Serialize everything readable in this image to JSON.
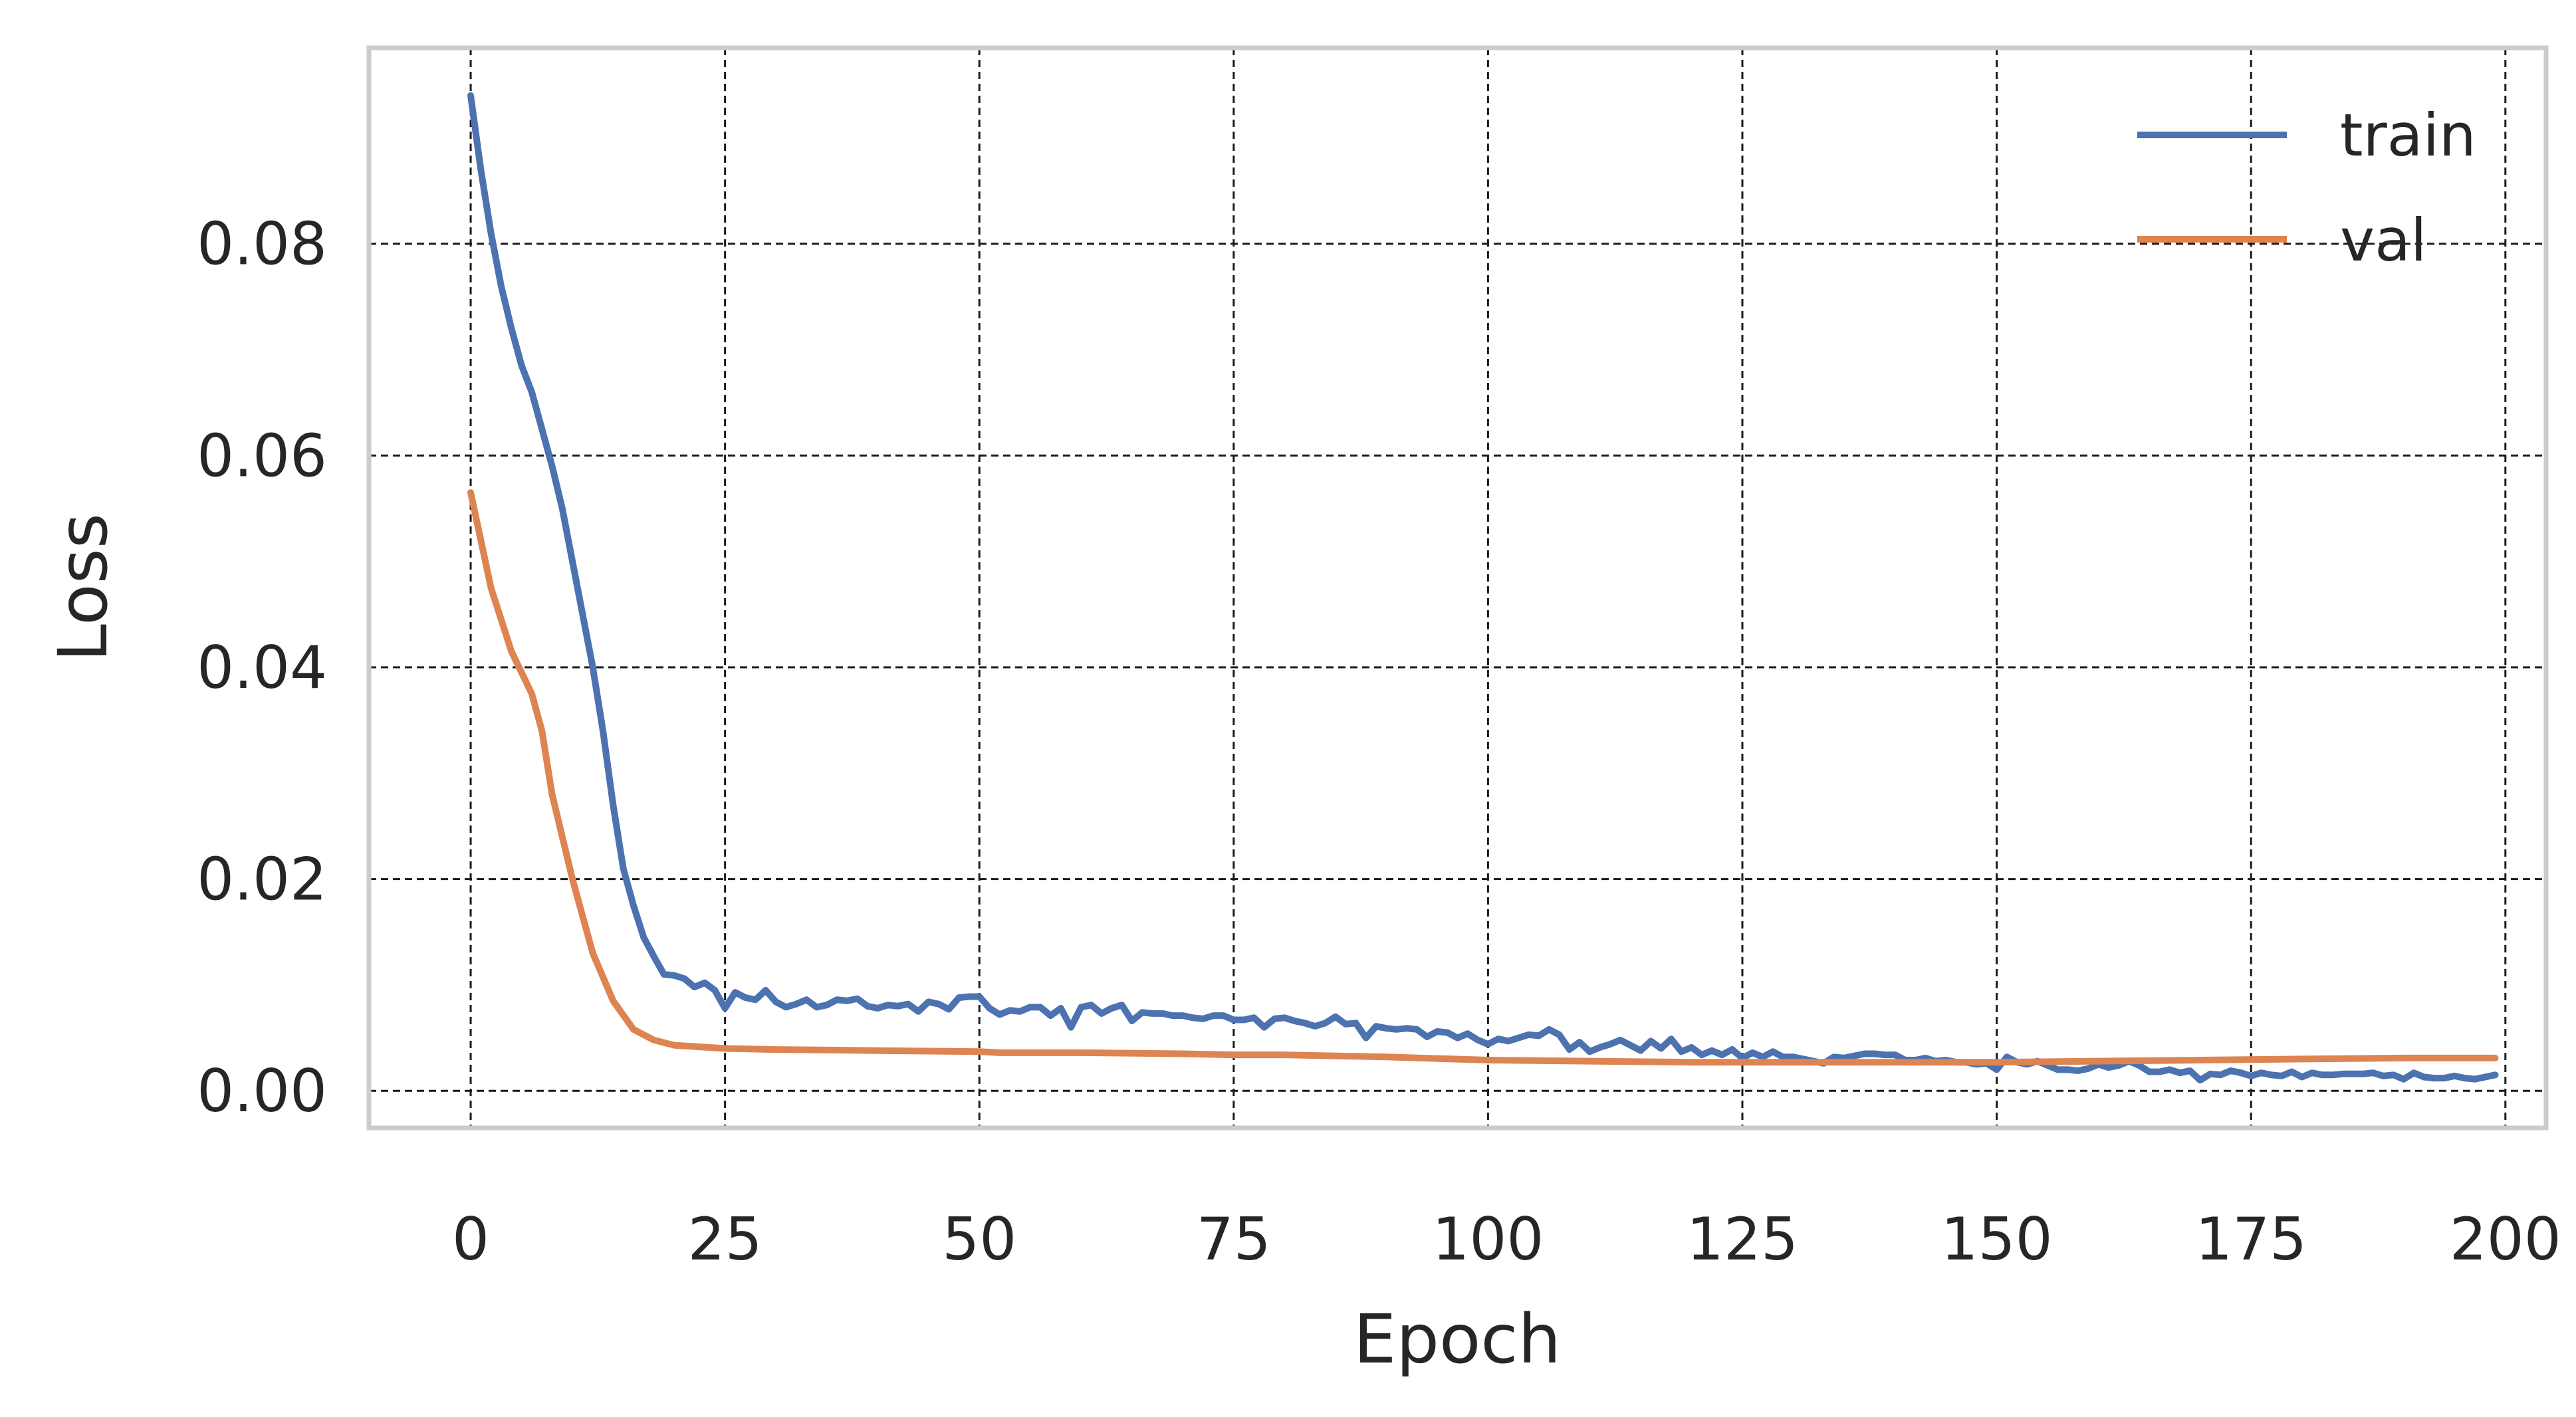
{
  "chart_data": {
    "type": "line",
    "title": "",
    "xlabel": "Epoch",
    "ylabel": "Loss",
    "xlim": [
      -10,
      204
    ],
    "ylim": [
      -0.0035,
      0.0985
    ],
    "x_ticks": [
      0,
      25,
      50,
      75,
      100,
      125,
      150,
      175,
      200
    ],
    "x_tick_labels": [
      "0",
      "25",
      "50",
      "75",
      "100",
      "125",
      "150",
      "175",
      "200"
    ],
    "y_ticks": [
      0.0,
      0.02,
      0.04,
      0.06,
      0.08
    ],
    "y_tick_labels": [
      "0.00",
      "0.02",
      "0.04",
      "0.06",
      "0.08"
    ],
    "grid": true,
    "legend_position": "top-right",
    "colors": {
      "train": "#4c72b0",
      "val": "#dd8452",
      "grid": "#1a1a1a",
      "frame": "#cccccc"
    },
    "series": [
      {
        "name": "train",
        "color": "#4c72b0",
        "points": [
          [
            0,
            0.094
          ],
          [
            1,
            0.087
          ],
          [
            2,
            0.081
          ],
          [
            3,
            0.076
          ],
          [
            4,
            0.072
          ],
          [
            5,
            0.0685
          ],
          [
            6,
            0.066
          ],
          [
            7,
            0.0625
          ],
          [
            8,
            0.059
          ],
          [
            9,
            0.055
          ],
          [
            10,
            0.05
          ],
          [
            11,
            0.045
          ],
          [
            12,
            0.04
          ],
          [
            13,
            0.034
          ],
          [
            14,
            0.027
          ],
          [
            15,
            0.021
          ],
          [
            16,
            0.0175
          ],
          [
            17,
            0.0145
          ],
          [
            18,
            0.0127
          ],
          [
            19,
            0.011
          ],
          [
            20,
            0.0109
          ],
          [
            21,
            0.0106
          ],
          [
            22,
            0.0098
          ],
          [
            23,
            0.0102
          ],
          [
            24,
            0.0095
          ],
          [
            25,
            0.0078
          ],
          [
            26,
            0.0093
          ],
          [
            27,
            0.0088
          ],
          [
            28,
            0.0086
          ],
          [
            29,
            0.0095
          ],
          [
            30,
            0.0084
          ],
          [
            31,
            0.0079
          ],
          [
            32,
            0.0082
          ],
          [
            33,
            0.0086
          ],
          [
            34,
            0.0079
          ],
          [
            35,
            0.0081
          ],
          [
            36,
            0.0086
          ],
          [
            37,
            0.0085
          ],
          [
            38,
            0.0087
          ],
          [
            39,
            0.008
          ],
          [
            40,
            0.0078
          ],
          [
            41,
            0.0081
          ],
          [
            42,
            0.008
          ],
          [
            43,
            0.0082
          ],
          [
            44,
            0.0075
          ],
          [
            45,
            0.0084
          ],
          [
            46,
            0.0082
          ],
          [
            47,
            0.0077
          ],
          [
            48,
            0.0088
          ],
          [
            49,
            0.0089
          ],
          [
            50,
            0.0089
          ],
          [
            51,
            0.0078
          ],
          [
            52,
            0.0072
          ],
          [
            53,
            0.0076
          ],
          [
            54,
            0.0075
          ],
          [
            55,
            0.0079
          ],
          [
            56,
            0.0079
          ],
          [
            57,
            0.0071
          ],
          [
            58,
            0.0078
          ],
          [
            59,
            0.006
          ],
          [
            60,
            0.0079
          ],
          [
            61,
            0.0081
          ],
          [
            62,
            0.0073
          ],
          [
            63,
            0.0078
          ],
          [
            64,
            0.0081
          ],
          [
            65,
            0.0066
          ],
          [
            66,
            0.0074
          ],
          [
            67,
            0.0073
          ],
          [
            68,
            0.0073
          ],
          [
            69,
            0.0071
          ],
          [
            70,
            0.0071
          ],
          [
            71,
            0.0069
          ],
          [
            72,
            0.0068
          ],
          [
            73,
            0.0071
          ],
          [
            74,
            0.0071
          ],
          [
            75,
            0.0067
          ],
          [
            76,
            0.0067
          ],
          [
            77,
            0.0069
          ],
          [
            78,
            0.006
          ],
          [
            79,
            0.0068
          ],
          [
            80,
            0.0069
          ],
          [
            81,
            0.0066
          ],
          [
            82,
            0.0064
          ],
          [
            83,
            0.0061
          ],
          [
            84,
            0.0064
          ],
          [
            85,
            0.007
          ],
          [
            86,
            0.0063
          ],
          [
            87,
            0.0064
          ],
          [
            88,
            0.005
          ],
          [
            89,
            0.0061
          ],
          [
            90,
            0.0059
          ],
          [
            91,
            0.0058
          ],
          [
            92,
            0.0059
          ],
          [
            93,
            0.0058
          ],
          [
            94,
            0.0051
          ],
          [
            95,
            0.0056
          ],
          [
            96,
            0.0055
          ],
          [
            97,
            0.005
          ],
          [
            98,
            0.0054
          ],
          [
            99,
            0.0048
          ],
          [
            100,
            0.0044
          ],
          [
            101,
            0.0049
          ],
          [
            102,
            0.0047
          ],
          [
            103,
            0.005
          ],
          [
            104,
            0.0053
          ],
          [
            105,
            0.0052
          ],
          [
            106,
            0.0058
          ],
          [
            107,
            0.0053
          ],
          [
            108,
            0.0039
          ],
          [
            109,
            0.0046
          ],
          [
            110,
            0.0037
          ],
          [
            111,
            0.0041
          ],
          [
            112,
            0.0044
          ],
          [
            113,
            0.0048
          ],
          [
            114,
            0.0043
          ],
          [
            115,
            0.0038
          ],
          [
            116,
            0.0047
          ],
          [
            117,
            0.004
          ],
          [
            118,
            0.0049
          ],
          [
            119,
            0.0037
          ],
          [
            120,
            0.0041
          ],
          [
            121,
            0.0034
          ],
          [
            122,
            0.0038
          ],
          [
            123,
            0.0034
          ],
          [
            124,
            0.0039
          ],
          [
            125,
            0.0031
          ],
          [
            126,
            0.0036
          ],
          [
            127,
            0.0032
          ],
          [
            128,
            0.0037
          ],
          [
            129,
            0.0032
          ],
          [
            130,
            0.0032
          ],
          [
            131,
            0.003
          ],
          [
            132,
            0.0028
          ],
          [
            133,
            0.0026
          ],
          [
            134,
            0.0032
          ],
          [
            135,
            0.0031
          ],
          [
            136,
            0.0033
          ],
          [
            137,
            0.0035
          ],
          [
            138,
            0.0035
          ],
          [
            139,
            0.0034
          ],
          [
            140,
            0.0034
          ],
          [
            141,
            0.0029
          ],
          [
            142,
            0.0029
          ],
          [
            143,
            0.0031
          ],
          [
            144,
            0.0028
          ],
          [
            145,
            0.0029
          ],
          [
            146,
            0.0027
          ],
          [
            147,
            0.0027
          ],
          [
            148,
            0.0025
          ],
          [
            149,
            0.0026
          ],
          [
            150,
            0.002
          ],
          [
            151,
            0.0032
          ],
          [
            152,
            0.0027
          ],
          [
            153,
            0.0025
          ],
          [
            154,
            0.0028
          ],
          [
            155,
            0.0024
          ],
          [
            156,
            0.002
          ],
          [
            157,
            0.002
          ],
          [
            158,
            0.0019
          ],
          [
            159,
            0.0021
          ],
          [
            160,
            0.0025
          ],
          [
            161,
            0.0022
          ],
          [
            162,
            0.0024
          ],
          [
            163,
            0.0028
          ],
          [
            164,
            0.0024
          ],
          [
            165,
            0.0018
          ],
          [
            166,
            0.0018
          ],
          [
            167,
            0.002
          ],
          [
            168,
            0.0017
          ],
          [
            169,
            0.0019
          ],
          [
            170,
            0.001
          ],
          [
            171,
            0.0016
          ],
          [
            172,
            0.0015
          ],
          [
            173,
            0.0019
          ],
          [
            174,
            0.0017
          ],
          [
            175,
            0.0014
          ],
          [
            176,
            0.0017
          ],
          [
            177,
            0.0015
          ],
          [
            178,
            0.0014
          ],
          [
            179,
            0.0018
          ],
          [
            180,
            0.0013
          ],
          [
            181,
            0.0017
          ],
          [
            182,
            0.0015
          ],
          [
            183,
            0.0015
          ],
          [
            184,
            0.0016
          ],
          [
            185,
            0.0016
          ],
          [
            186,
            0.0016
          ],
          [
            187,
            0.0017
          ],
          [
            188,
            0.0014
          ],
          [
            189,
            0.0015
          ],
          [
            190,
            0.0011
          ],
          [
            191,
            0.0017
          ],
          [
            192,
            0.0013
          ],
          [
            193,
            0.0012
          ],
          [
            194,
            0.0012
          ],
          [
            195,
            0.0014
          ],
          [
            196,
            0.0012
          ],
          [
            197,
            0.0011
          ],
          [
            198,
            0.0013
          ],
          [
            199,
            0.0015
          ]
        ]
      },
      {
        "name": "val",
        "color": "#dd8452",
        "points": [
          [
            0,
            0.0565
          ],
          [
            2,
            0.0475
          ],
          [
            4,
            0.0415
          ],
          [
            6,
            0.0375
          ],
          [
            7,
            0.034
          ],
          [
            8,
            0.028
          ],
          [
            10,
            0.02
          ],
          [
            12,
            0.013
          ],
          [
            14,
            0.0085
          ],
          [
            16,
            0.0058
          ],
          [
            18,
            0.0048
          ],
          [
            20,
            0.0043
          ],
          [
            25,
            0.004
          ],
          [
            30,
            0.0039
          ],
          [
            40,
            0.0038
          ],
          [
            50,
            0.0037
          ],
          [
            52,
            0.0036
          ],
          [
            60,
            0.0036
          ],
          [
            70,
            0.0035
          ],
          [
            75,
            0.0034
          ],
          [
            80,
            0.0034
          ],
          [
            90,
            0.0032
          ],
          [
            100,
            0.0029
          ],
          [
            110,
            0.0028
          ],
          [
            120,
            0.0027
          ],
          [
            130,
            0.0027
          ],
          [
            140,
            0.0027
          ],
          [
            150,
            0.0027
          ],
          [
            160,
            0.0028
          ],
          [
            170,
            0.0029
          ],
          [
            180,
            0.003
          ],
          [
            190,
            0.0031
          ],
          [
            199,
            0.0031
          ]
        ]
      }
    ]
  }
}
